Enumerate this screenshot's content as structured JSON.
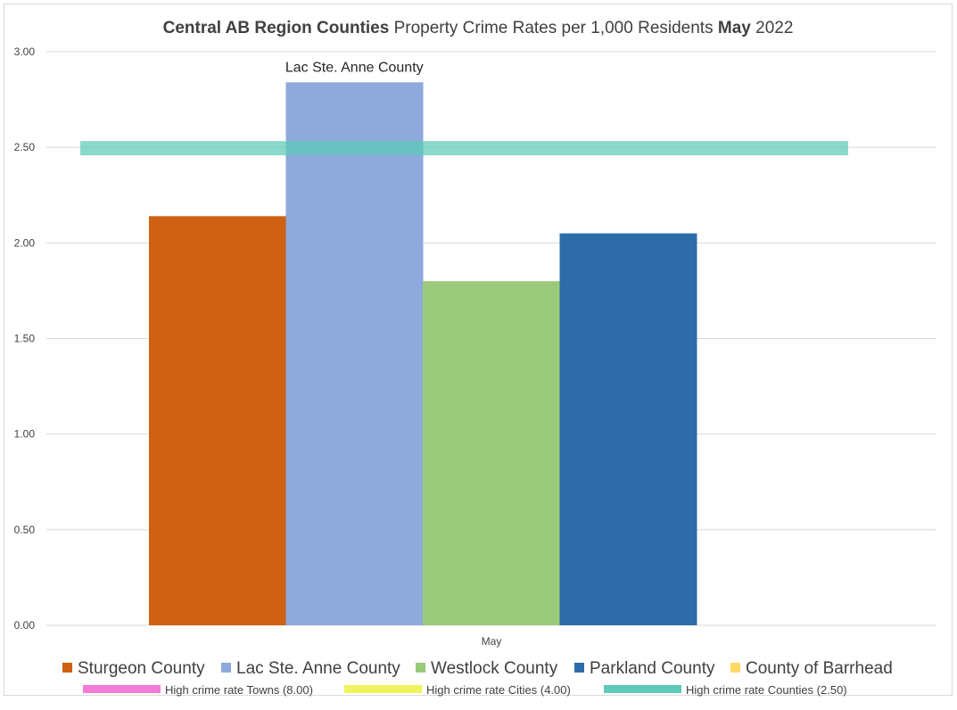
{
  "chart_data": {
    "type": "bar",
    "title_parts": [
      {
        "text": "Central AB Region Counties",
        "bold": true
      },
      {
        "text": " Property Crime Rates per 1,000 Residents ",
        "bold": false
      },
      {
        "text": "May",
        "bold": true
      },
      {
        "text": " 2022",
        "bold": false
      }
    ],
    "categories": [
      "May"
    ],
    "ylim": [
      0,
      3.0
    ],
    "yticks": [
      "0.00",
      "0.50",
      "1.00",
      "1.50",
      "2.00",
      "2.50",
      "3.00"
    ],
    "ytick_values": [
      0,
      0.5,
      1.0,
      1.5,
      2.0,
      2.5,
      3.0
    ],
    "grid": true,
    "series": [
      {
        "name": "Sturgeon County",
        "values": [
          2.14
        ],
        "color": "#D06012"
      },
      {
        "name": "Lac Ste. Anne County",
        "values": [
          2.84
        ],
        "color": "#8EA9DB"
      },
      {
        "name": "Westlock County",
        "values": [
          1.8
        ],
        "color": "#9BC97B"
      },
      {
        "name": "Parkland County",
        "values": [
          2.05
        ],
        "color": "#2E6CA9"
      },
      {
        "name": "County of Barrhead",
        "values": [
          null
        ],
        "color": "#FFD966"
      }
    ],
    "data_label": {
      "series_index": 1,
      "text": "Lac Ste. Anne County"
    },
    "reference_lines": [
      {
        "name": "High crime rate Towns (8.00)",
        "value": 8.0,
        "color": "#F47BD6",
        "visible_in_plot": false
      },
      {
        "name": "High crime rate Cities (4.00)",
        "value": 4.0,
        "color": "#EEF55A",
        "visible_in_plot": false
      },
      {
        "name": "High crime rate Counties (2.50)",
        "value": 2.5,
        "color": "#5DCAB7",
        "visible_in_plot": true
      }
    ],
    "legend_placement": "bottom"
  }
}
